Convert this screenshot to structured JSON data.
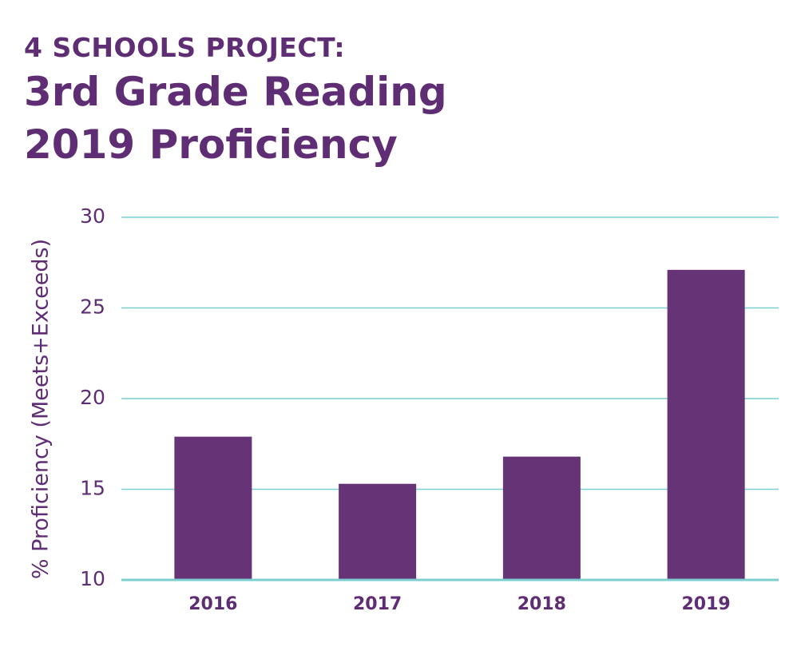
{
  "chart_data": {
    "type": "bar",
    "title_kicker": "4 SCHOOLS PROJECT:",
    "title_lines": [
      "3rd Grade Reading",
      "2019 Proficiency"
    ],
    "xlabel": "",
    "ylabel": "% Proficiency (Meets+Exceeds)",
    "categories": [
      "2016",
      "2017",
      "2018",
      "2019"
    ],
    "values": [
      17.9,
      15.3,
      16.8,
      27.1
    ],
    "ylim": [
      10,
      30
    ],
    "yticks": [
      10,
      15,
      20,
      25,
      30
    ],
    "grid": true,
    "legend": "none"
  },
  "colors": {
    "bar": "#663377",
    "grid": "#7ccfcf",
    "text": "#5f2d73"
  }
}
